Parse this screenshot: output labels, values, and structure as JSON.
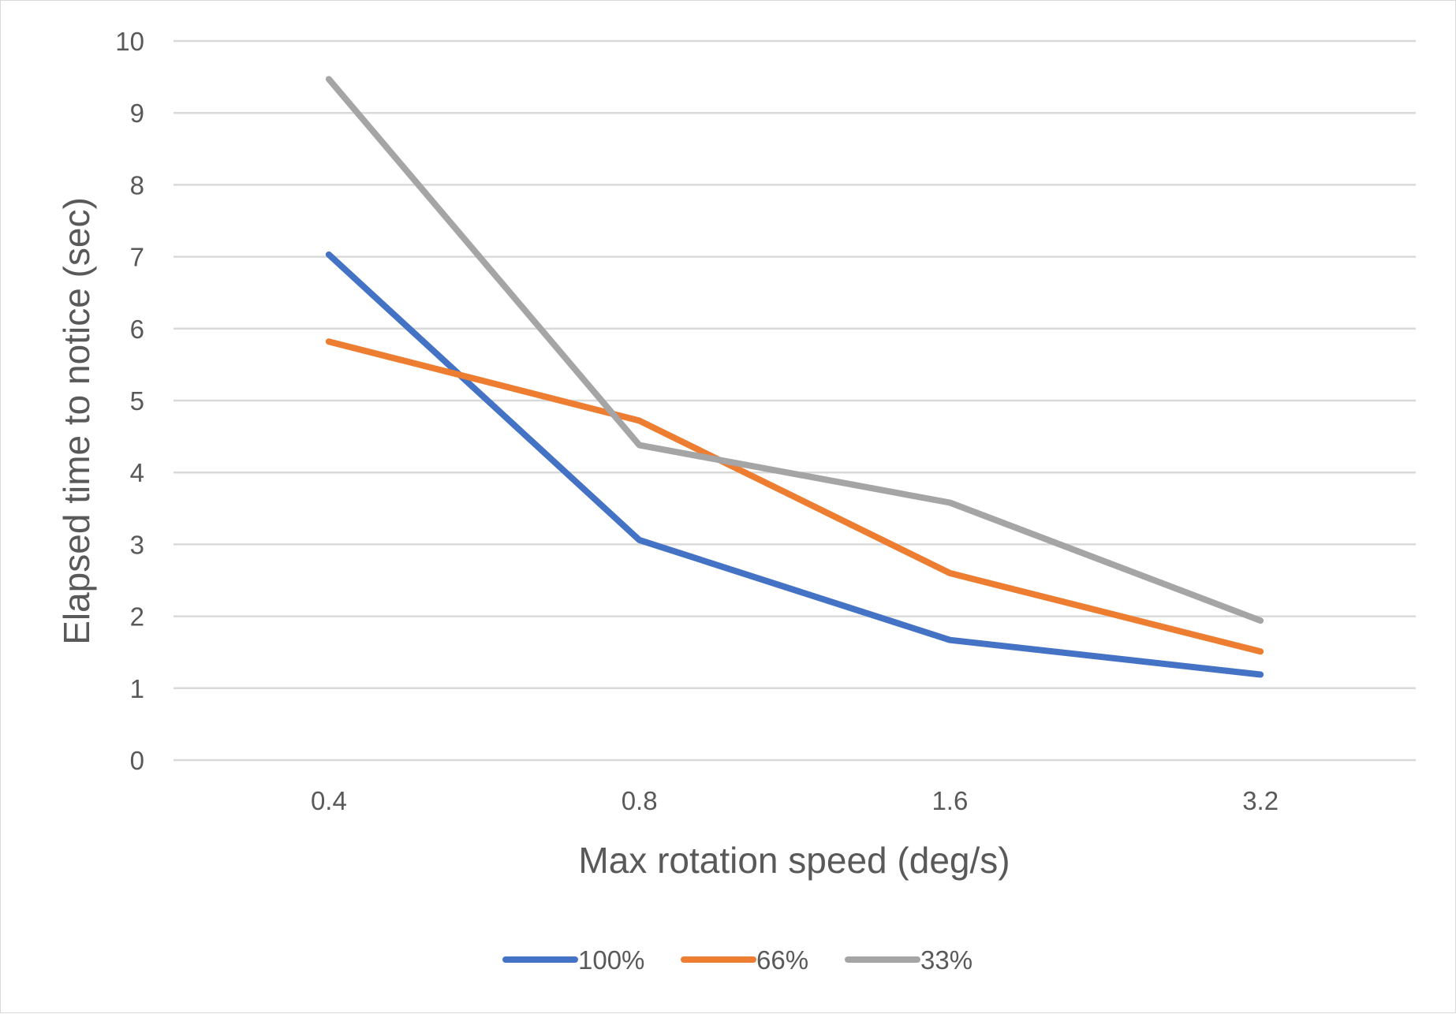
{
  "chart_data": {
    "type": "line",
    "title": "",
    "xlabel": "Max rotation speed (deg/s)",
    "ylabel": "Elapsed time to notice (sec)",
    "categories": [
      "0.4",
      "0.8",
      "1.6",
      "3.2"
    ],
    "ylim": [
      0,
      10
    ],
    "yticks": [
      "0",
      "1",
      "2",
      "3",
      "4",
      "5",
      "6",
      "7",
      "8",
      "9",
      "10"
    ],
    "grid": true,
    "legend_position": "bottom",
    "series": [
      {
        "name": "100%",
        "color": "#4472C4",
        "values": [
          7.03,
          3.06,
          1.67,
          1.19
        ]
      },
      {
        "name": "66%",
        "color": "#ED7D31",
        "values": [
          5.82,
          4.72,
          2.6,
          1.51
        ]
      },
      {
        "name": "33%",
        "color": "#A5A5A5",
        "values": [
          9.47,
          4.38,
          3.58,
          1.94
        ]
      }
    ]
  }
}
